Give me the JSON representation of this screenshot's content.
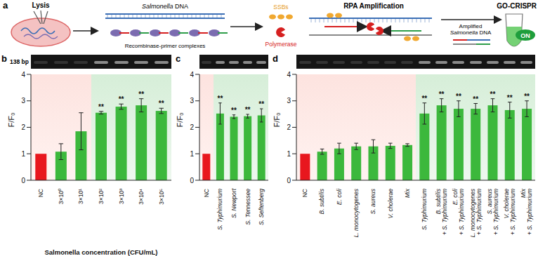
{
  "diagram": {
    "panel": "a",
    "steps": [
      "Lysis",
      "RPA Amplification",
      "GO-CRISPR"
    ],
    "labels": {
      "dna": "Salmonella DNA",
      "complexes": "Recombinase-primer complexes",
      "ssb": "SSBs",
      "polymerase": "Polymerase",
      "amplified": "Amplified Salmonella DNA",
      "signal": "ON"
    }
  },
  "chart_data": [
    {
      "type": "bar",
      "panel": "b",
      "gel_label": "138 bp",
      "y_label": "F/F₀",
      "x_label": "Salmonella concentration (CFU/mL)",
      "categories": [
        "NC",
        "3×10⁰",
        "3×10¹",
        "3×10²",
        "3×10³",
        "3×10⁴",
        "3×10⁵"
      ],
      "values": [
        1,
        1.08,
        1.85,
        2.55,
        2.78,
        2.83,
        2.62
      ],
      "errors": [
        null,
        0.3,
        0.7,
        0.05,
        0.1,
        0.25,
        0.1
      ],
      "significance": [
        null,
        null,
        null,
        "**",
        "**",
        "**",
        "**"
      ],
      "colors": [
        "#e8171e",
        "#3cb83c",
        "#3cb83c",
        "#3cb83c",
        "#3cb83c",
        "#3cb83c",
        "#3cb83c"
      ],
      "ylim": [
        0,
        4
      ],
      "yticks": [
        0,
        1,
        2,
        3,
        4
      ]
    },
    {
      "type": "bar",
      "panel": "c",
      "y_label": "F/F₀",
      "categories": [
        "NC",
        "S. Typhimurium",
        "S. Newport",
        "S. Tennessee",
        "S. Seftenberg"
      ],
      "values": [
        1,
        2.52,
        2.4,
        2.42,
        2.45
      ],
      "errors": [
        null,
        0.4,
        0.07,
        0.07,
        0.25
      ],
      "significance": [
        null,
        "**",
        "**",
        "**",
        "**"
      ],
      "colors": [
        "#e8171e",
        "#3cb83c",
        "#3cb83c",
        "#3cb83c",
        "#3cb83c"
      ],
      "ylim": [
        0,
        4
      ],
      "yticks": [
        0,
        1,
        2,
        3,
        4
      ]
    },
    {
      "type": "bar",
      "panel": "d",
      "y_label": "F/F₀",
      "categories": [
        "NC",
        "B. subtilis",
        "E. coli",
        "L. monocytogenes",
        "S. aureus",
        "V. cholerae",
        "Mix",
        "S. Typhimurium",
        "B. subtilis + S. Typhimurium",
        "E. coli + S. Typhimurium",
        "L. monocytogenes + S. Typhimurium",
        "S. aureus + S. Typhimurium",
        "V. cholerae + S. Typhimurium",
        "Mix + S. Typhimurium"
      ],
      "values": [
        1,
        1.08,
        1.2,
        1.28,
        1.28,
        1.3,
        1.33,
        2.52,
        2.83,
        2.7,
        2.7,
        2.83,
        2.65,
        2.7
      ],
      "errors": [
        null,
        0.1,
        0.2,
        0.12,
        0.25,
        0.1,
        0.05,
        0.4,
        0.25,
        0.3,
        0.2,
        0.25,
        0.3,
        0.3
      ],
      "significance": [
        null,
        null,
        null,
        null,
        null,
        null,
        null,
        "**",
        "**",
        "**",
        "**",
        "**",
        "**",
        "**"
      ],
      "colors": [
        "#e8171e",
        "#3cb83c",
        "#3cb83c",
        "#3cb83c",
        "#3cb83c",
        "#3cb83c",
        "#3cb83c",
        "#3cb83c",
        "#3cb83c",
        "#3cb83c",
        "#3cb83c",
        "#3cb83c",
        "#3cb83c",
        "#3cb83c"
      ],
      "ylim": [
        0,
        4
      ],
      "yticks": [
        0,
        1,
        2,
        3,
        4
      ]
    }
  ]
}
